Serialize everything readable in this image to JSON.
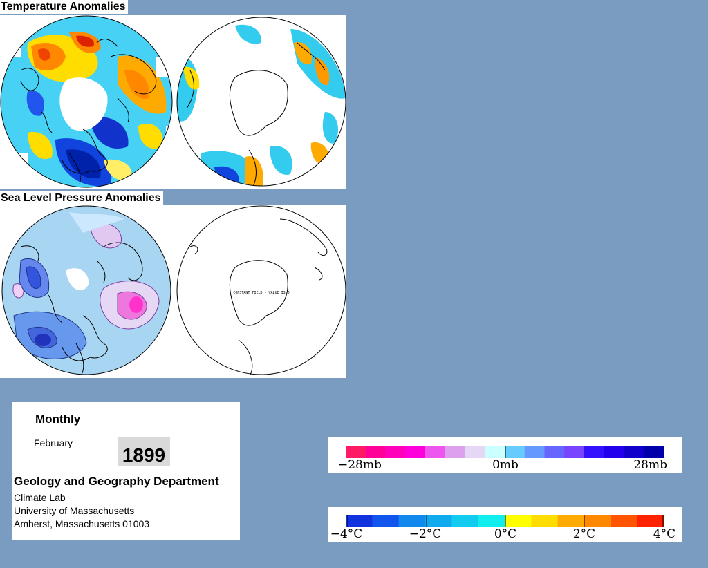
{
  "titles": {
    "temperature": "Temperature Anomalies",
    "pressure": "Sea Level Pressure Anomalies"
  },
  "maps": {
    "pressure_south_note": "CONSTANT FIELD - VALUE IS 0"
  },
  "info": {
    "frequency": "Monthly",
    "month": "February",
    "year": "1899",
    "department": "Geology and Geography Department",
    "lab": "Climate Lab",
    "university": "University of Massachusetts",
    "address": "Amherst, Massachusetts 01003"
  },
  "pressure_scale": {
    "colors": [
      "#ff1a66",
      "#ff0099",
      "#ff00bb",
      "#ff00dd",
      "#ee55ee",
      "#dda0ee",
      "#e6d8f5",
      "#ccffff",
      "#66ccff",
      "#6699ff",
      "#6666ff",
      "#7744ff",
      "#3311ff",
      "#2200ee",
      "#1100cc",
      "#0000aa"
    ],
    "labels": [
      "−28mb",
      "0mb",
      "28mb"
    ]
  },
  "temperature_scale": {
    "colors": [
      "#1133dd",
      "#1155ee",
      "#1188ee",
      "#11aaee",
      "#11ccee",
      "#11eeee",
      "#ffff00",
      "#ffdd00",
      "#ffaa00",
      "#ff8800",
      "#ff5500",
      "#ff2200"
    ],
    "labels": [
      "−4°C",
      "−2°C",
      "0°C",
      "2°C",
      "4°C"
    ]
  }
}
